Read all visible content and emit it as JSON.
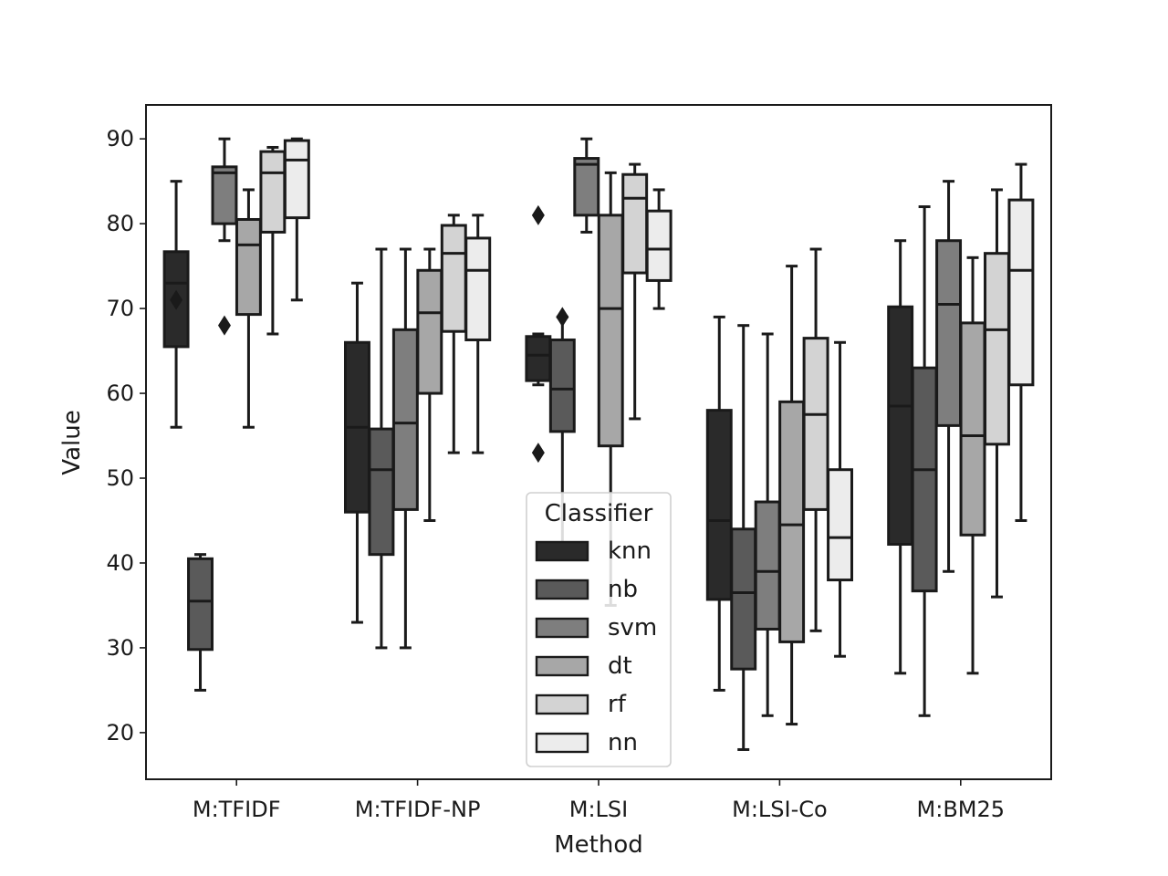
{
  "chart_data": {
    "type": "box",
    "xlabel": "Method",
    "ylabel": "Value",
    "ylim": [
      14.5,
      94
    ],
    "yticks": [
      20,
      30,
      40,
      50,
      60,
      70,
      80,
      90
    ],
    "categories": [
      "M:TFIDF",
      "M:TFIDF-NP",
      "M:LSI",
      "M:LSI-Co",
      "M:BM25"
    ],
    "legend": {
      "title": "Classifier",
      "placement": "bottom-center"
    },
    "series": [
      {
        "name": "knn",
        "color": "#2a2a2a",
        "boxes": [
          {
            "min": 56,
            "q1": 65.5,
            "median": 73,
            "q3": 76.7,
            "max": 85,
            "outliers": [
              71
            ]
          },
          {
            "min": 33,
            "q1": 46,
            "median": 56,
            "q3": 66,
            "max": 73,
            "outliers": []
          },
          {
            "min": 61,
            "q1": 61.5,
            "median": 64.5,
            "q3": 66.7,
            "max": 67,
            "outliers": [
              81,
              53
            ]
          },
          {
            "min": 25,
            "q1": 35.7,
            "median": 45,
            "q3": 58,
            "max": 69,
            "outliers": []
          },
          {
            "min": 27,
            "q1": 42.2,
            "median": 58.5,
            "q3": 70.2,
            "max": 78,
            "outliers": []
          }
        ]
      },
      {
        "name": "nb",
        "color": "#5a5a5a",
        "boxes": [
          {
            "min": 25,
            "q1": 29.8,
            "median": 35.5,
            "q3": 40.5,
            "max": 41,
            "outliers": []
          },
          {
            "min": 30,
            "q1": 41,
            "median": 51,
            "q3": 55.8,
            "max": 77,
            "outliers": []
          },
          {
            "min": 40.5,
            "q1": 55.5,
            "median": 60.5,
            "q3": 66.3,
            "max": 69,
            "outliers": [
              69
            ]
          },
          {
            "min": 18,
            "q1": 27.5,
            "median": 36.5,
            "q3": 44,
            "max": 68,
            "outliers": []
          },
          {
            "min": 22,
            "q1": 36.7,
            "median": 51,
            "q3": 63,
            "max": 82,
            "outliers": []
          }
        ]
      },
      {
        "name": "svm",
        "color": "#7e7e7e",
        "boxes": [
          {
            "min": 78,
            "q1": 80,
            "median": 86,
            "q3": 86.7,
            "max": 90,
            "outliers": [
              68
            ]
          },
          {
            "min": 30,
            "q1": 46.3,
            "median": 56.5,
            "q3": 67.5,
            "max": 77,
            "outliers": []
          },
          {
            "min": 79,
            "q1": 81,
            "median": 87,
            "q3": 87.7,
            "max": 90,
            "outliers": []
          },
          {
            "min": 22,
            "q1": 32.2,
            "median": 39,
            "q3": 47.2,
            "max": 67,
            "outliers": []
          },
          {
            "min": 39,
            "q1": 56.2,
            "median": 70.5,
            "q3": 78,
            "max": 85,
            "outliers": []
          }
        ]
      },
      {
        "name": "dt",
        "color": "#a7a7a7",
        "boxes": [
          {
            "min": 56,
            "q1": 69.3,
            "median": 77.5,
            "q3": 80.5,
            "max": 84,
            "outliers": []
          },
          {
            "min": 45,
            "q1": 60,
            "median": 69.5,
            "q3": 74.5,
            "max": 77,
            "outliers": []
          },
          {
            "min": 35,
            "q1": 53.8,
            "median": 70,
            "q3": 81,
            "max": 86,
            "outliers": []
          },
          {
            "min": 21,
            "q1": 30.7,
            "median": 44.5,
            "q3": 59,
            "max": 75,
            "outliers": []
          },
          {
            "min": 27,
            "q1": 43.3,
            "median": 55,
            "q3": 68.3,
            "max": 76,
            "outliers": []
          }
        ]
      },
      {
        "name": "rf",
        "color": "#d3d3d3",
        "boxes": [
          {
            "min": 67,
            "q1": 79,
            "median": 86,
            "q3": 88.5,
            "max": 89,
            "outliers": []
          },
          {
            "min": 53,
            "q1": 67.3,
            "median": 76.5,
            "q3": 79.8,
            "max": 81,
            "outliers": []
          },
          {
            "min": 57,
            "q1": 74.2,
            "median": 83,
            "q3": 85.8,
            "max": 87,
            "outliers": []
          },
          {
            "min": 32,
            "q1": 46.3,
            "median": 57.5,
            "q3": 66.5,
            "max": 77,
            "outliers": []
          },
          {
            "min": 36,
            "q1": 54,
            "median": 67.5,
            "q3": 76.5,
            "max": 84,
            "outliers": []
          }
        ]
      },
      {
        "name": "nn",
        "color": "#ececec",
        "boxes": [
          {
            "min": 71,
            "q1": 80.7,
            "median": 87.5,
            "q3": 89.8,
            "max": 90,
            "outliers": []
          },
          {
            "min": 53,
            "q1": 66.3,
            "median": 74.5,
            "q3": 78.3,
            "max": 81,
            "outliers": []
          },
          {
            "min": 70,
            "q1": 73.3,
            "median": 77,
            "q3": 81.5,
            "max": 84,
            "outliers": []
          },
          {
            "min": 29,
            "q1": 38,
            "median": 43,
            "q3": 51,
            "max": 66,
            "outliers": []
          },
          {
            "min": 45,
            "q1": 61,
            "median": 74.5,
            "q3": 82.8,
            "max": 87,
            "outliers": []
          }
        ]
      }
    ]
  }
}
